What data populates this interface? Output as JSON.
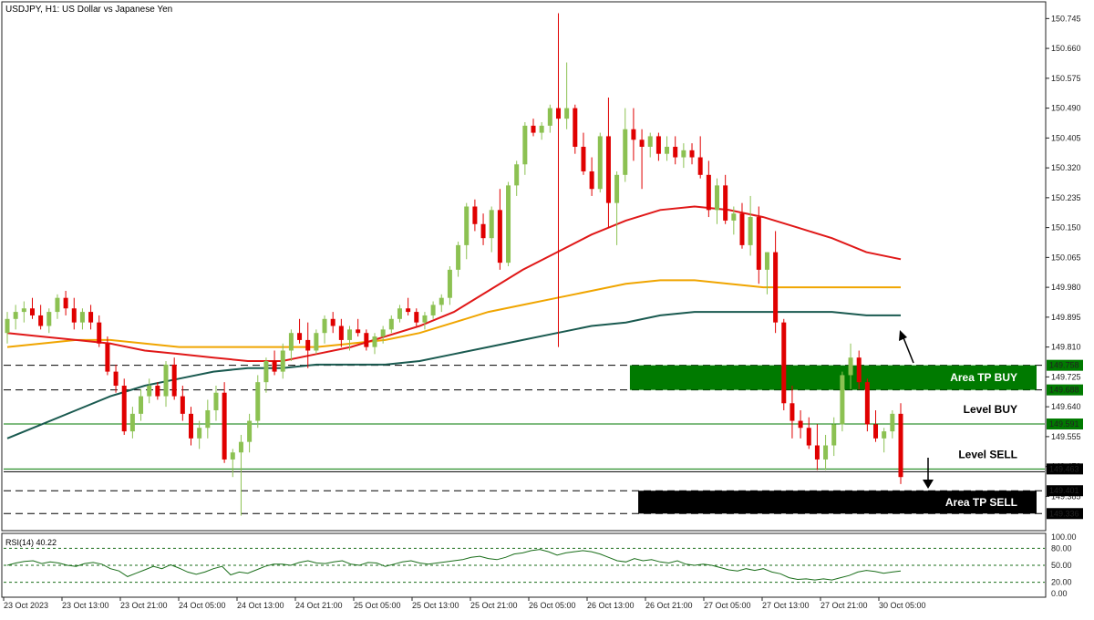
{
  "chart_data": [
    {
      "type": "candlestick",
      "title": "USDJPY, H1:  US Dollar vs Japanese Yen",
      "ylim": [
        149.29,
        150.79
      ],
      "y_ticks": [
        "150.745",
        "150.660",
        "150.575",
        "150.490",
        "150.405",
        "150.320",
        "150.235",
        "150.150",
        "150.065",
        "149.980",
        "149.895",
        "149.810",
        "149.725",
        "149.640",
        "149.555",
        "149.470",
        "149.385"
      ],
      "x_ticks": [
        "23 Oct 2023",
        "23 Oct 13:00",
        "23 Oct 21:00",
        "24 Oct 05:00",
        "24 Oct 13:00",
        "24 Oct 21:00",
        "25 Oct 05:00",
        "25 Oct 13:00",
        "25 Oct 21:00",
        "26 Oct 05:00",
        "26 Oct 13:00",
        "26 Oct 21:00",
        "27 Oct 05:00",
        "27 Oct 13:00",
        "27 Oct 21:00",
        "30 Oct 05:00"
      ],
      "price_tags": [
        {
          "label": "149.758",
          "price": 149.758,
          "bg": "#007a00",
          "fg": "#ffffff"
        },
        {
          "label": "149.688",
          "price": 149.688,
          "bg": "#007a00",
          "fg": "#ffffff"
        },
        {
          "label": "149.591",
          "price": 149.591,
          "bg": "#007a00",
          "fg": "#ffffff"
        },
        {
          "label": "149.463",
          "price": 149.463,
          "bg": "#000000",
          "fg": "#ffffff"
        },
        {
          "label": "149.401",
          "price": 149.401,
          "bg": "#000000",
          "fg": "#ffffff"
        },
        {
          "label": "149.336",
          "price": 149.336,
          "bg": "#000000",
          "fg": "#ffffff"
        }
      ],
      "zones": [
        {
          "label": "Area TP BUY",
          "top": 149.758,
          "bottom": 149.688,
          "start_index": 75,
          "color": "#007a00"
        },
        {
          "label": "Area TP SELL",
          "top": 149.401,
          "bottom": 149.336,
          "start_index": 76,
          "color": "#000000"
        }
      ],
      "levels": [
        {
          "label": "Level BUY",
          "price": 149.591,
          "color": "#007a00"
        },
        {
          "label": "Level SELL",
          "price": 149.463,
          "color": "#007a00"
        }
      ],
      "dashed_levels": [
        149.758,
        149.688,
        149.401,
        149.336
      ],
      "colors": {
        "bull": "#8cc152",
        "bear": "#e00000",
        "ma_fast": "#e01818",
        "ma_mid": "#f0a500",
        "ma_slow": "#1a5a50",
        "rsi": "#1a6e1a"
      },
      "candles": [
        [
          149.85,
          149.91,
          149.82,
          149.89
        ],
        [
          149.89,
          149.93,
          149.86,
          149.91
        ],
        [
          149.91,
          149.94,
          149.88,
          149.92
        ],
        [
          149.92,
          149.95,
          149.89,
          149.9
        ],
        [
          149.9,
          149.93,
          149.86,
          149.87
        ],
        [
          149.87,
          149.92,
          149.85,
          149.91
        ],
        [
          149.91,
          149.96,
          149.89,
          149.95
        ],
        [
          149.95,
          149.97,
          149.9,
          149.92
        ],
        [
          149.92,
          149.95,
          149.86,
          149.88
        ],
        [
          149.88,
          149.92,
          149.86,
          149.91
        ],
        [
          149.91,
          149.93,
          149.86,
          149.88
        ],
        [
          149.88,
          149.9,
          149.81,
          149.82
        ],
        [
          149.82,
          149.84,
          149.73,
          149.74
        ],
        [
          149.74,
          149.76,
          149.68,
          149.7
        ],
        [
          149.7,
          149.72,
          149.56,
          149.57
        ],
        [
          149.57,
          149.64,
          149.55,
          149.62
        ],
        [
          149.62,
          149.69,
          149.6,
          149.67
        ],
        [
          149.67,
          149.72,
          149.65,
          149.7
        ],
        [
          149.7,
          149.71,
          149.66,
          149.67
        ],
        [
          149.67,
          149.77,
          149.64,
          149.76
        ],
        [
          149.76,
          149.78,
          149.66,
          149.67
        ],
        [
          149.67,
          149.7,
          149.6,
          149.62
        ],
        [
          149.62,
          149.64,
          149.53,
          149.55
        ],
        [
          149.55,
          149.6,
          149.52,
          149.58
        ],
        [
          149.58,
          149.66,
          149.55,
          149.63
        ],
        [
          149.63,
          149.7,
          149.6,
          149.68
        ],
        [
          149.68,
          149.71,
          149.48,
          149.49
        ],
        [
          149.49,
          149.52,
          149.44,
          149.51
        ],
        [
          149.51,
          149.56,
          149.33,
          149.54
        ],
        [
          149.54,
          149.62,
          149.51,
          149.6
        ],
        [
          149.6,
          149.73,
          149.58,
          149.71
        ],
        [
          149.71,
          149.78,
          149.68,
          149.77
        ],
        [
          149.77,
          149.8,
          149.73,
          149.74
        ],
        [
          149.74,
          149.82,
          149.72,
          149.8
        ],
        [
          149.8,
          149.86,
          149.77,
          149.85
        ],
        [
          149.85,
          149.89,
          149.82,
          149.83
        ],
        [
          149.83,
          149.88,
          149.75,
          149.8
        ],
        [
          149.8,
          149.86,
          149.79,
          149.85
        ],
        [
          149.85,
          149.9,
          149.82,
          149.89
        ],
        [
          149.89,
          149.91,
          149.85,
          149.87
        ],
        [
          149.87,
          149.89,
          149.81,
          149.83
        ],
        [
          149.83,
          149.87,
          149.8,
          149.86
        ],
        [
          149.86,
          149.89,
          149.84,
          149.85
        ],
        [
          149.85,
          149.86,
          149.8,
          149.81
        ],
        [
          149.81,
          149.85,
          149.79,
          149.84
        ],
        [
          149.84,
          149.87,
          149.82,
          149.86
        ],
        [
          149.86,
          149.9,
          149.85,
          149.89
        ],
        [
          149.89,
          149.93,
          149.88,
          149.92
        ],
        [
          149.92,
          149.95,
          149.9,
          149.91
        ],
        [
          149.91,
          149.92,
          149.87,
          149.88
        ],
        [
          149.88,
          149.91,
          149.86,
          149.9
        ],
        [
          149.9,
          149.94,
          149.89,
          149.93
        ],
        [
          149.93,
          149.96,
          149.91,
          149.95
        ],
        [
          149.95,
          150.04,
          149.93,
          150.03
        ],
        [
          150.03,
          150.11,
          150.01,
          150.1
        ],
        [
          150.1,
          150.22,
          150.06,
          150.21
        ],
        [
          150.21,
          150.23,
          150.14,
          150.16
        ],
        [
          150.16,
          150.19,
          150.1,
          150.12
        ],
        [
          150.12,
          150.21,
          150.08,
          150.2
        ],
        [
          150.2,
          150.26,
          150.03,
          150.05
        ],
        [
          150.05,
          150.28,
          150.04,
          150.27
        ],
        [
          150.27,
          150.34,
          150.24,
          150.33
        ],
        [
          150.33,
          150.45,
          150.3,
          150.44
        ],
        [
          150.44,
          150.46,
          150.41,
          150.42
        ],
        [
          150.42,
          150.45,
          150.4,
          150.44
        ],
        [
          150.44,
          150.5,
          150.42,
          150.49
        ],
        [
          150.49,
          150.76,
          149.81,
          150.46
        ],
        [
          150.46,
          150.62,
          150.43,
          150.49
        ],
        [
          150.49,
          150.5,
          150.36,
          150.38
        ],
        [
          150.38,
          150.42,
          150.3,
          150.31
        ],
        [
          150.31,
          150.35,
          150.24,
          150.26
        ],
        [
          150.26,
          150.42,
          150.25,
          150.41
        ],
        [
          150.41,
          150.52,
          150.15,
          150.22
        ],
        [
          150.22,
          150.31,
          150.1,
          150.3
        ],
        [
          150.3,
          150.49,
          150.28,
          150.43
        ],
        [
          150.43,
          150.49,
          150.34,
          150.4
        ],
        [
          150.4,
          150.43,
          150.26,
          150.38
        ],
        [
          150.38,
          150.42,
          150.35,
          150.41
        ],
        [
          150.41,
          150.42,
          150.34,
          150.36
        ],
        [
          150.36,
          150.41,
          150.34,
          150.38
        ],
        [
          150.38,
          150.41,
          150.33,
          150.35
        ],
        [
          150.35,
          150.39,
          150.32,
          150.37
        ],
        [
          150.37,
          150.39,
          150.33,
          150.35
        ],
        [
          150.35,
          150.41,
          150.29,
          150.3
        ],
        [
          150.3,
          150.34,
          150.18,
          150.2
        ],
        [
          150.2,
          150.29,
          150.16,
          150.27
        ],
        [
          150.27,
          150.3,
          150.16,
          150.17
        ],
        [
          150.17,
          150.21,
          150.13,
          150.19
        ],
        [
          150.19,
          150.22,
          150.09,
          150.1
        ],
        [
          150.1,
          150.24,
          150.07,
          150.18
        ],
        [
          150.18,
          150.21,
          149.99,
          150.03
        ],
        [
          150.03,
          150.08,
          149.96,
          150.08
        ],
        [
          150.08,
          150.14,
          149.85,
          149.88
        ],
        [
          149.88,
          149.89,
          149.63,
          149.65
        ],
        [
          149.65,
          149.7,
          149.55,
          149.6
        ],
        [
          149.6,
          149.63,
          149.55,
          149.58
        ],
        [
          149.58,
          149.61,
          149.52,
          149.53
        ],
        [
          149.53,
          149.59,
          149.46,
          149.49
        ],
        [
          149.49,
          149.56,
          149.46,
          149.53
        ],
        [
          149.53,
          149.61,
          149.5,
          149.59
        ],
        [
          149.59,
          149.74,
          149.57,
          149.73
        ],
        [
          149.73,
          149.82,
          149.69,
          149.78
        ],
        [
          149.78,
          149.8,
          149.69,
          149.71
        ],
        [
          149.71,
          149.72,
          149.57,
          149.59
        ],
        [
          149.59,
          149.63,
          149.54,
          149.55
        ],
        [
          149.55,
          149.58,
          149.51,
          149.57
        ],
        [
          149.57,
          149.63,
          149.55,
          149.62
        ],
        [
          149.62,
          149.65,
          149.42,
          149.44
        ]
      ],
      "ma_fast": [
        149.85,
        149.84,
        149.83,
        149.82,
        149.8,
        149.79,
        149.78,
        149.77,
        149.77,
        149.79,
        149.81,
        149.84,
        149.87,
        149.91,
        149.97,
        150.03,
        150.08,
        150.13,
        150.17,
        150.2,
        150.21,
        150.2,
        150.18,
        150.15,
        150.12,
        150.08,
        150.06
      ],
      "ma_mid": [
        149.81,
        149.82,
        149.83,
        149.83,
        149.82,
        149.81,
        149.81,
        149.81,
        149.81,
        149.81,
        149.82,
        149.83,
        149.85,
        149.88,
        149.91,
        149.93,
        149.95,
        149.97,
        149.99,
        150.0,
        150.0,
        149.99,
        149.98,
        149.98,
        149.98,
        149.98,
        149.98
      ],
      "ma_slow": [
        149.55,
        149.59,
        149.63,
        149.67,
        149.7,
        149.72,
        149.74,
        149.75,
        149.75,
        149.76,
        149.76,
        149.76,
        149.77,
        149.79,
        149.81,
        149.83,
        149.85,
        149.87,
        149.88,
        149.9,
        149.91,
        149.91,
        149.91,
        149.91,
        149.91,
        149.9,
        149.9
      ],
      "rsi": {
        "label": "RSI(14) 40.22",
        "value": 40.22,
        "ticks": [
          "100.00",
          "80.00",
          "50.00",
          "20.00",
          "0.00"
        ],
        "levels": [
          20,
          50,
          80
        ],
        "values": [
          50,
          54,
          57,
          58,
          53,
          56,
          54,
          50,
          48,
          53,
          55,
          52,
          44,
          40,
          30,
          36,
          42,
          48,
          44,
          51,
          45,
          38,
          34,
          38,
          44,
          48,
          33,
          38,
          36,
          42,
          48,
          52,
          52,
          50,
          55,
          58,
          54,
          53,
          56,
          58,
          52,
          50,
          55,
          54,
          48,
          52,
          56,
          58,
          54,
          52,
          54,
          56,
          58,
          60,
          64,
          66,
          62,
          60,
          64,
          70,
          72,
          76,
          78,
          74,
          68,
          72,
          74,
          76,
          74,
          70,
          64,
          58,
          56,
          62,
          58,
          60,
          56,
          54,
          58,
          52,
          50,
          52,
          50,
          46,
          42,
          40,
          44,
          41,
          44,
          38,
          35,
          28,
          25,
          26,
          24,
          26,
          24,
          28,
          32,
          38,
          41,
          39,
          36,
          38,
          40
        ]
      }
    }
  ]
}
